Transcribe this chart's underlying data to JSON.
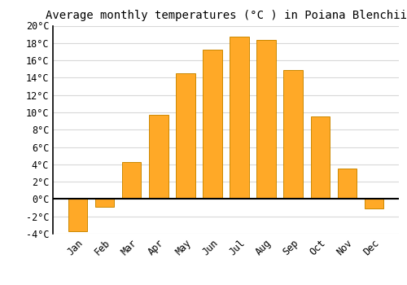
{
  "title": "Average monthly temperatures (°C ) in Poiana Blenchii",
  "months": [
    "Jan",
    "Feb",
    "Mar",
    "Apr",
    "May",
    "Jun",
    "Jul",
    "Aug",
    "Sep",
    "Oct",
    "Nov",
    "Dec"
  ],
  "values": [
    -3.7,
    -0.9,
    4.3,
    9.7,
    14.5,
    17.2,
    18.7,
    18.4,
    14.9,
    9.5,
    3.5,
    -1.1
  ],
  "bar_color": "#FFA927",
  "bar_edge_color": "#CC8800",
  "ylim": [
    -4,
    20
  ],
  "yticks": [
    -4,
    -2,
    0,
    2,
    4,
    6,
    8,
    10,
    12,
    14,
    16,
    18,
    20
  ],
  "background_color": "#FFFFFF",
  "grid_color": "#D8D8D8",
  "title_fontsize": 10,
  "tick_fontsize": 8.5,
  "font_family": "monospace"
}
